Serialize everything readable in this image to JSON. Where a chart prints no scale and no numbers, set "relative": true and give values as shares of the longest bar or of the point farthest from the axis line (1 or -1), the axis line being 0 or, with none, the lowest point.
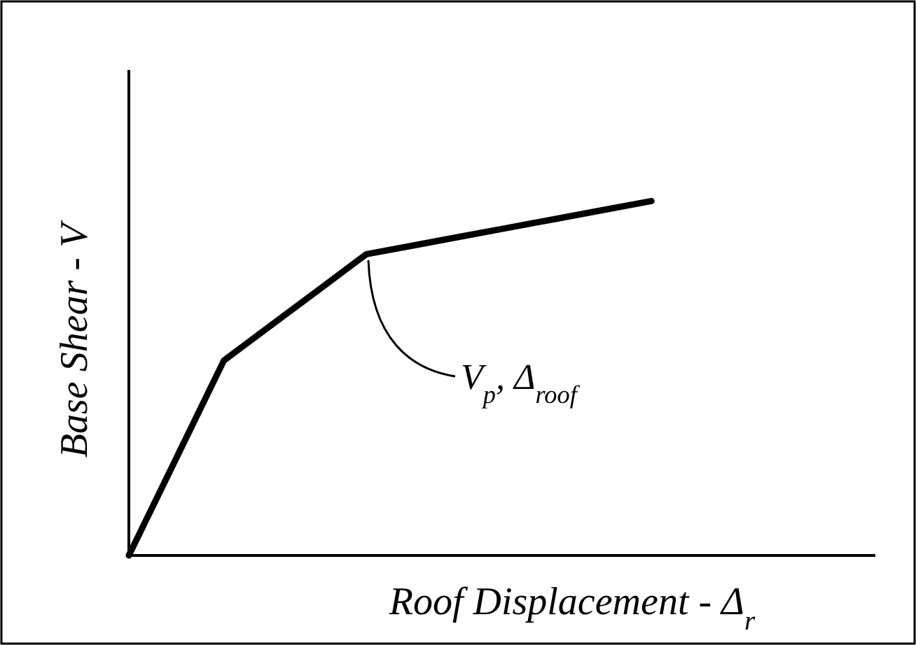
{
  "chart_data": {
    "type": "line",
    "relative": true,
    "xlabel": "Roof Displacement - Δ$_{r}$",
    "ylabel": "Base Shear - V",
    "categories": [
      null,
      null,
      null,
      null,
      null,
      null,
      null,
      null,
      null,
      null,
      null,
      null
    ],
    "series": [
      {
        "color": "#000000",
        "values": [
          0,
          0.275,
          0.55,
          0.65,
          0.75,
          0.85,
          0.875,
          0.9,
          0.925,
          0.95,
          0.975,
          1
        ]
      }
    ],
    "annotations": [
      "V$_{p}$, Δ$_{roof}$"
    ],
    "marker": "none",
    "line_style": "solid"
  }
}
